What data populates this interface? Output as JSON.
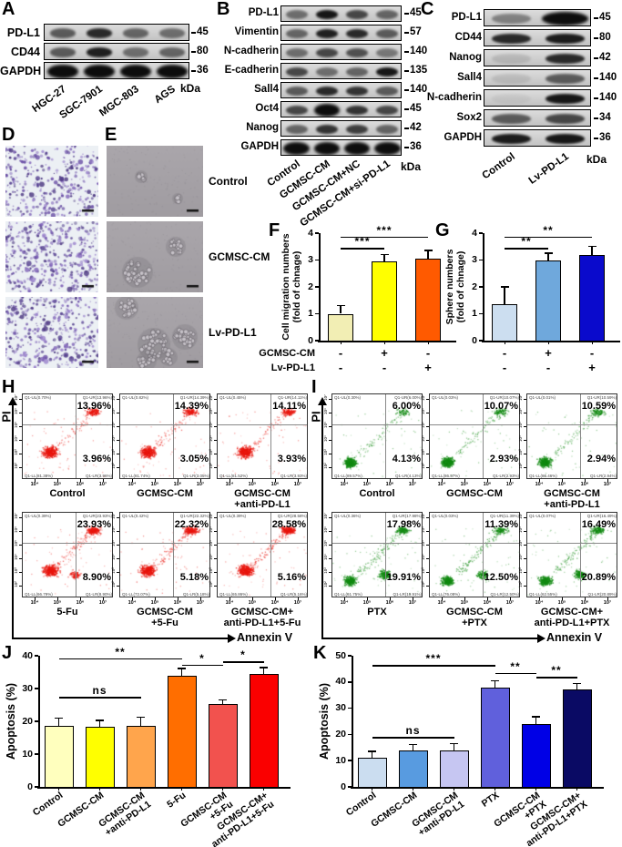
{
  "panel_letters": {
    "A": "A",
    "B": "B",
    "C": "C",
    "D": "D",
    "E": "E",
    "F": "F",
    "G": "G",
    "H": "H",
    "I": "I",
    "J": "J",
    "K": "K"
  },
  "blots": {
    "A": {
      "unit": "kDa",
      "lanes": [
        "HGC-27",
        "SGC-7901",
        "MGC-803",
        "AGS"
      ],
      "rows": [
        {
          "label": "PD-L1",
          "marker": "45",
          "bands": [
            0.6,
            0.85,
            0.55,
            0.5
          ]
        },
        {
          "label": "CD44",
          "marker": "80",
          "bands": [
            0.6,
            0.9,
            0.5,
            0.55
          ]
        },
        {
          "label": "GAPDH",
          "marker": "36",
          "bands": [
            1,
            1,
            1,
            1
          ]
        }
      ]
    },
    "B": {
      "unit": "kDa",
      "lanes": [
        "Control",
        "GCMSC-CM",
        "GCMSC-CM+NC",
        "GCMSC-CM+si-PD-L1"
      ],
      "rows": [
        {
          "label": "PD-L1",
          "marker": "45",
          "bands": [
            0.5,
            0.95,
            0.7,
            0.55
          ]
        },
        {
          "label": "Vimentin",
          "marker": "57",
          "bands": [
            0.55,
            0.9,
            0.85,
            0.6
          ]
        },
        {
          "label": "N-cadherin",
          "marker": "140",
          "bands": [
            0.5,
            0.7,
            0.65,
            0.45
          ]
        },
        {
          "label": "E-cadherin",
          "marker": "135",
          "bands": [
            0.7,
            0.5,
            0.55,
            0.95
          ]
        },
        {
          "label": "Sall4",
          "marker": "140",
          "bands": [
            0.6,
            0.85,
            0.8,
            0.6
          ]
        },
        {
          "label": "Oct4",
          "marker": "45",
          "bands": [
            0.7,
            1,
            0.8,
            0.7
          ]
        },
        {
          "label": "Nanog",
          "marker": "42",
          "bands": [
            0.55,
            0.8,
            0.75,
            0.55
          ]
        },
        {
          "label": "GAPDH",
          "marker": "36",
          "bands": [
            1,
            1,
            1,
            1
          ]
        }
      ]
    },
    "C": {
      "unit": "kDa",
      "lanes": [
        "Control",
        "Lv-PD-L1"
      ],
      "rows": [
        {
          "label": "PD-L1",
          "marker": "45",
          "bands": [
            0.4,
            1
          ]
        },
        {
          "label": "CD44",
          "marker": "80",
          "bands": [
            0.85,
            0.92
          ]
        },
        {
          "label": "Nanog",
          "marker": "42",
          "bands": [
            0.12,
            0.85
          ]
        },
        {
          "label": "Sall4",
          "marker": "140",
          "bands": [
            0.1,
            0.6
          ]
        },
        {
          "label": "N-cadherin",
          "marker": "140",
          "bands": [
            0.05,
            0.95
          ]
        },
        {
          "label": "Sox2",
          "marker": "34",
          "bands": [
            0.6,
            0.7
          ]
        },
        {
          "label": "GAPDH",
          "marker": "36",
          "bands": [
            0.92,
            0.95
          ]
        }
      ]
    }
  },
  "images": {
    "E_labels": [
      "Control",
      "GCMSC-CM",
      "Lv-PD-L1"
    ]
  },
  "chart_data": {
    "F": {
      "type": "bar",
      "ylabel": "Cell migration numbers\n(fold of chnage)",
      "ylim": [
        0,
        4
      ],
      "yticks": [
        0,
        1,
        2,
        3,
        4
      ],
      "values": [
        1.0,
        2.95,
        3.05
      ],
      "errors": [
        0.3,
        0.25,
        0.3
      ],
      "colors": [
        "#F2EEB4",
        "#FFFF00",
        "#FF5A00"
      ],
      "xrows": [
        {
          "label": "GCMSC-CM",
          "values": [
            "-",
            "+",
            "-"
          ]
        },
        {
          "label": "Lv-PD-L1",
          "values": [
            "-",
            "-",
            "+"
          ]
        }
      ],
      "row_labels_visible": true,
      "sig": [
        {
          "from": 0,
          "to": 1,
          "label": "***",
          "y": 3.45
        },
        {
          "from": 0,
          "to": 2,
          "label": "***",
          "y": 3.88
        }
      ]
    },
    "G": {
      "type": "bar",
      "ylabel": "Sphere numbers\n(fold of chnage)",
      "ylim": [
        0,
        4
      ],
      "yticks": [
        0,
        1,
        2,
        3,
        4
      ],
      "values": [
        1.35,
        3.0,
        3.2
      ],
      "errors": [
        0.65,
        0.25,
        0.3
      ],
      "colors": [
        "#CCDEF0",
        "#6FA8DC",
        "#0A0ACC"
      ],
      "xrows": [
        {
          "label": "GCMSC-CM",
          "values": [
            "-",
            "+",
            "-"
          ]
        },
        {
          "label": "Lv-PD-L1",
          "values": [
            "-",
            "-",
            "+"
          ]
        }
      ],
      "row_labels_visible": false,
      "sig": [
        {
          "from": 0,
          "to": 1,
          "label": "**",
          "y": 3.45
        },
        {
          "from": 0,
          "to": 2,
          "label": "**",
          "y": 3.88
        }
      ]
    },
    "J": {
      "type": "bar",
      "ylabel": "Apoptosis (%)",
      "ylim": [
        0,
        40
      ],
      "yticks": [
        0,
        10,
        20,
        30,
        40
      ],
      "categories": [
        "Control",
        "GCMSC-CM",
        "GCMSC-CM\n+anti-PD-L1",
        "5-Fu",
        "GCMSC-CM\n+5-Fu",
        "GCMSC-CM+\nanti-PD-L1+5-Fu"
      ],
      "values": [
        18.7,
        18.3,
        18.7,
        33.8,
        25.4,
        34.4
      ],
      "errors": [
        2.2,
        2.0,
        2.5,
        2.3,
        1.2,
        2.0
      ],
      "colors": [
        "#FFFFBE",
        "#FFFF00",
        "#FFA54C",
        "#FF6E00",
        "#F2524E",
        "#FA0000"
      ],
      "sig": [
        {
          "from": 0,
          "to": 2,
          "label": "ns",
          "y": 27.5
        },
        {
          "from": 0,
          "to": 3,
          "label": "**",
          "y": 39.2
        },
        {
          "from": 3,
          "to": 4,
          "label": "*",
          "y": 37.3
        },
        {
          "from": 4,
          "to": 5,
          "label": "*",
          "y": 38.3
        }
      ]
    },
    "K": {
      "type": "bar",
      "ylabel": "Apoptosis (%)",
      "ylim": [
        0,
        50
      ],
      "yticks": [
        0,
        10,
        20,
        30,
        40,
        50
      ],
      "categories": [
        "Control",
        "GCMSC-CM",
        "GCMSC-CM\n+anti-PD-L1",
        "PTX",
        "GCMSC-CM\n+PTX",
        "GCMSC-CM+\nanti-PD-L1+PTX"
      ],
      "values": [
        11,
        14,
        14,
        38,
        24,
        37.3
      ],
      "errors": [
        2.5,
        2.2,
        2.5,
        2.5,
        2.7,
        2.2
      ],
      "colors": [
        "#CBDDF0",
        "#589BE0",
        "#C6C6F2",
        "#6060DC",
        "#0000E6",
        "#0A0A64"
      ],
      "sig": [
        {
          "from": 0,
          "to": 2,
          "label": "ns",
          "y": 19
        },
        {
          "from": 0,
          "to": 3,
          "label": "***",
          "y": 46.5
        },
        {
          "from": 3,
          "to": 4,
          "label": "**",
          "y": 43.5
        },
        {
          "from": 4,
          "to": 5,
          "label": "**",
          "y": 42
        }
      ]
    },
    "H": {
      "type": "scatter",
      "ylabel": "PI",
      "xlabel": "Annexin V",
      "dot_color": "#e8150d",
      "quadrant_prefix": "Q1",
      "x_ticks": [
        "10⁴",
        "10⁵",
        "10⁶",
        "10⁷"
      ],
      "y_ticks": [
        "10⁷",
        "10⁶",
        "10⁵",
        "10⁴",
        "10³",
        "10²"
      ],
      "rows": [
        [
          {
            "name": "Control",
            "UL": "0.70",
            "UR": "13.96",
            "LL": "81.38",
            "LR": "3.96"
          },
          {
            "name": "GCMSC-CM",
            "UL": "0.82",
            "UR": "14.39",
            "LL": "81.74",
            "LR": "3.05"
          },
          {
            "name": "GCMSC-CM\n+anti-PD-L1",
            "UL": "0.45",
            "UR": "14.11",
            "LL": "81.52",
            "LR": "3.93"
          }
        ],
        [
          {
            "name": "5-Fu",
            "UL": "0.39",
            "UR": "23.93",
            "LL": "66.79",
            "LR": "8.90"
          },
          {
            "name": "GCMSC-CM\n+5-Fu",
            "UL": "0.42",
            "UR": "22.32",
            "LL": "72.07",
            "LR": "5.18"
          },
          {
            "name": "GCMSC-CM+\nanti-PD-L1+5-Fu",
            "UL": "0.39",
            "UR": "28.58",
            "LL": "65.86",
            "LR": "5.16"
          }
        ]
      ]
    },
    "I": {
      "type": "scatter",
      "ylabel": "PI",
      "xlabel": "Annexin V",
      "dot_color": "#128A12",
      "quadrant_prefix": "Q1",
      "x_ticks": [
        "10⁴",
        "10⁵",
        "10⁶",
        "10⁷"
      ],
      "y_ticks": [
        "10⁷",
        "10⁶",
        "10⁵",
        "10⁴",
        "10³",
        "10²"
      ],
      "rows": [
        [
          {
            "name": "Control",
            "UL": "0.30",
            "UR": "6.00",
            "LL": "89.57",
            "LR": "4.13"
          },
          {
            "name": "GCMSC-CM",
            "UL": "0.03",
            "UR": "10.07",
            "LL": "86.97",
            "LR": "2.93"
          },
          {
            "name": "GCMSC-CM\n+anti-PD-L1",
            "UL": "0.01",
            "UR": "10.59",
            "LL": "86.46",
            "LR": "2.94"
          }
        ],
        [
          {
            "name": "PTX",
            "UL": "0.36",
            "UR": "17.98",
            "LL": "61.75",
            "LR": "19.91"
          },
          {
            "name": "GCMSC-CM\n+PTX",
            "UL": "0.03",
            "UR": "11.39",
            "LL": "76.08",
            "LR": "12.50"
          },
          {
            "name": "GCMSC-CM+\nanti-PD-L1+PTX",
            "UL": "0.07",
            "UR": "16.49",
            "LL": "62.55",
            "LR": "20.89"
          }
        ]
      ]
    }
  }
}
